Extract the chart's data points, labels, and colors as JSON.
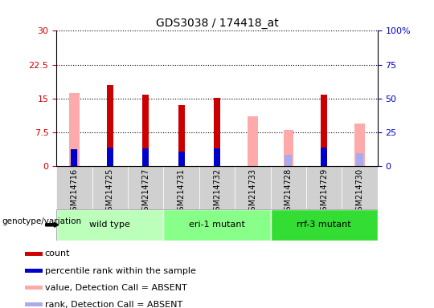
{
  "title": "GDS3038 / 174418_at",
  "samples": [
    "GSM214716",
    "GSM214725",
    "GSM214727",
    "GSM214731",
    "GSM214732",
    "GSM214733",
    "GSM214728",
    "GSM214729",
    "GSM214730"
  ],
  "count": [
    0,
    18.0,
    15.8,
    13.5,
    15.2,
    0,
    0,
    15.8,
    0
  ],
  "percentile_rank": [
    12.8,
    14.0,
    13.5,
    11.0,
    13.2,
    0,
    0,
    13.8,
    0
  ],
  "value_absent": [
    16.2,
    0,
    0,
    0,
    0,
    11.0,
    8.0,
    0,
    9.5
  ],
  "rank_absent": [
    12.8,
    0,
    0,
    0,
    0,
    0,
    8.5,
    0,
    9.5
  ],
  "genotype_groups": [
    {
      "label": "wild type",
      "start": 0,
      "end": 3,
      "color": "#bbffbb"
    },
    {
      "label": "eri-1 mutant",
      "start": 3,
      "end": 6,
      "color": "#88ff88"
    },
    {
      "label": "rrf-3 mutant",
      "start": 6,
      "end": 9,
      "color": "#33dd33"
    }
  ],
  "ylim_left": [
    0,
    30
  ],
  "ylim_right": [
    0,
    100
  ],
  "yticks_left": [
    0,
    7.5,
    15,
    22.5,
    30
  ],
  "ytick_labels_left": [
    "0",
    "7.5",
    "15",
    "22.5",
    "30"
  ],
  "yticks_right": [
    0,
    25,
    50,
    75,
    100
  ],
  "ytick_labels_right": [
    "0",
    "25",
    "50",
    "75",
    "100%"
  ],
  "color_count": "#cc0000",
  "color_percentile": "#0000cc",
  "color_value_absent": "#ffaaaa",
  "color_rank_absent": "#aaaaee",
  "count_bar_width": 0.18,
  "absent_bar_width": 0.28,
  "grid_color": "#000000",
  "genotype_label": "genotype/variation",
  "legend_items": [
    {
      "color": "#cc0000",
      "label": "count"
    },
    {
      "color": "#0000cc",
      "label": "percentile rank within the sample"
    },
    {
      "color": "#ffaaaa",
      "label": "value, Detection Call = ABSENT"
    },
    {
      "color": "#aaaaee",
      "label": "rank, Detection Call = ABSENT"
    }
  ]
}
